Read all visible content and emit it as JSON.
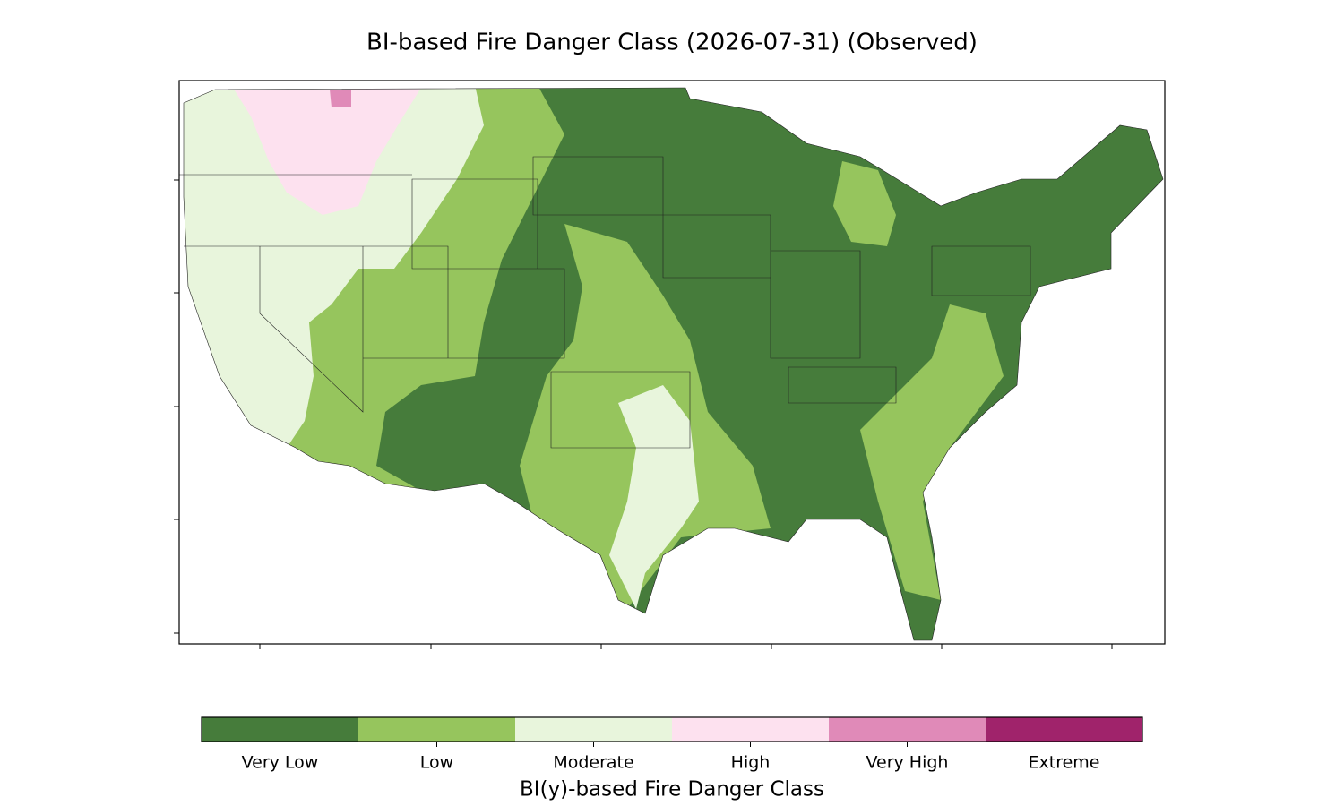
{
  "title": "BI-based Fire Danger Class (2026-07-31) (Observed)",
  "colorbar": {
    "label": "BI(y)-based Fire Danger Class",
    "categories": [
      {
        "name": "Very Low",
        "color": "#467c3b"
      },
      {
        "name": "Low",
        "color": "#96c55d"
      },
      {
        "name": "Moderate",
        "color": "#e8f5dc"
      },
      {
        "name": "High",
        "color": "#fde1ef"
      },
      {
        "name": "Very High",
        "color": "#e08ab8"
      },
      {
        "name": "Extreme",
        "color": "#a0236b"
      }
    ]
  }
}
